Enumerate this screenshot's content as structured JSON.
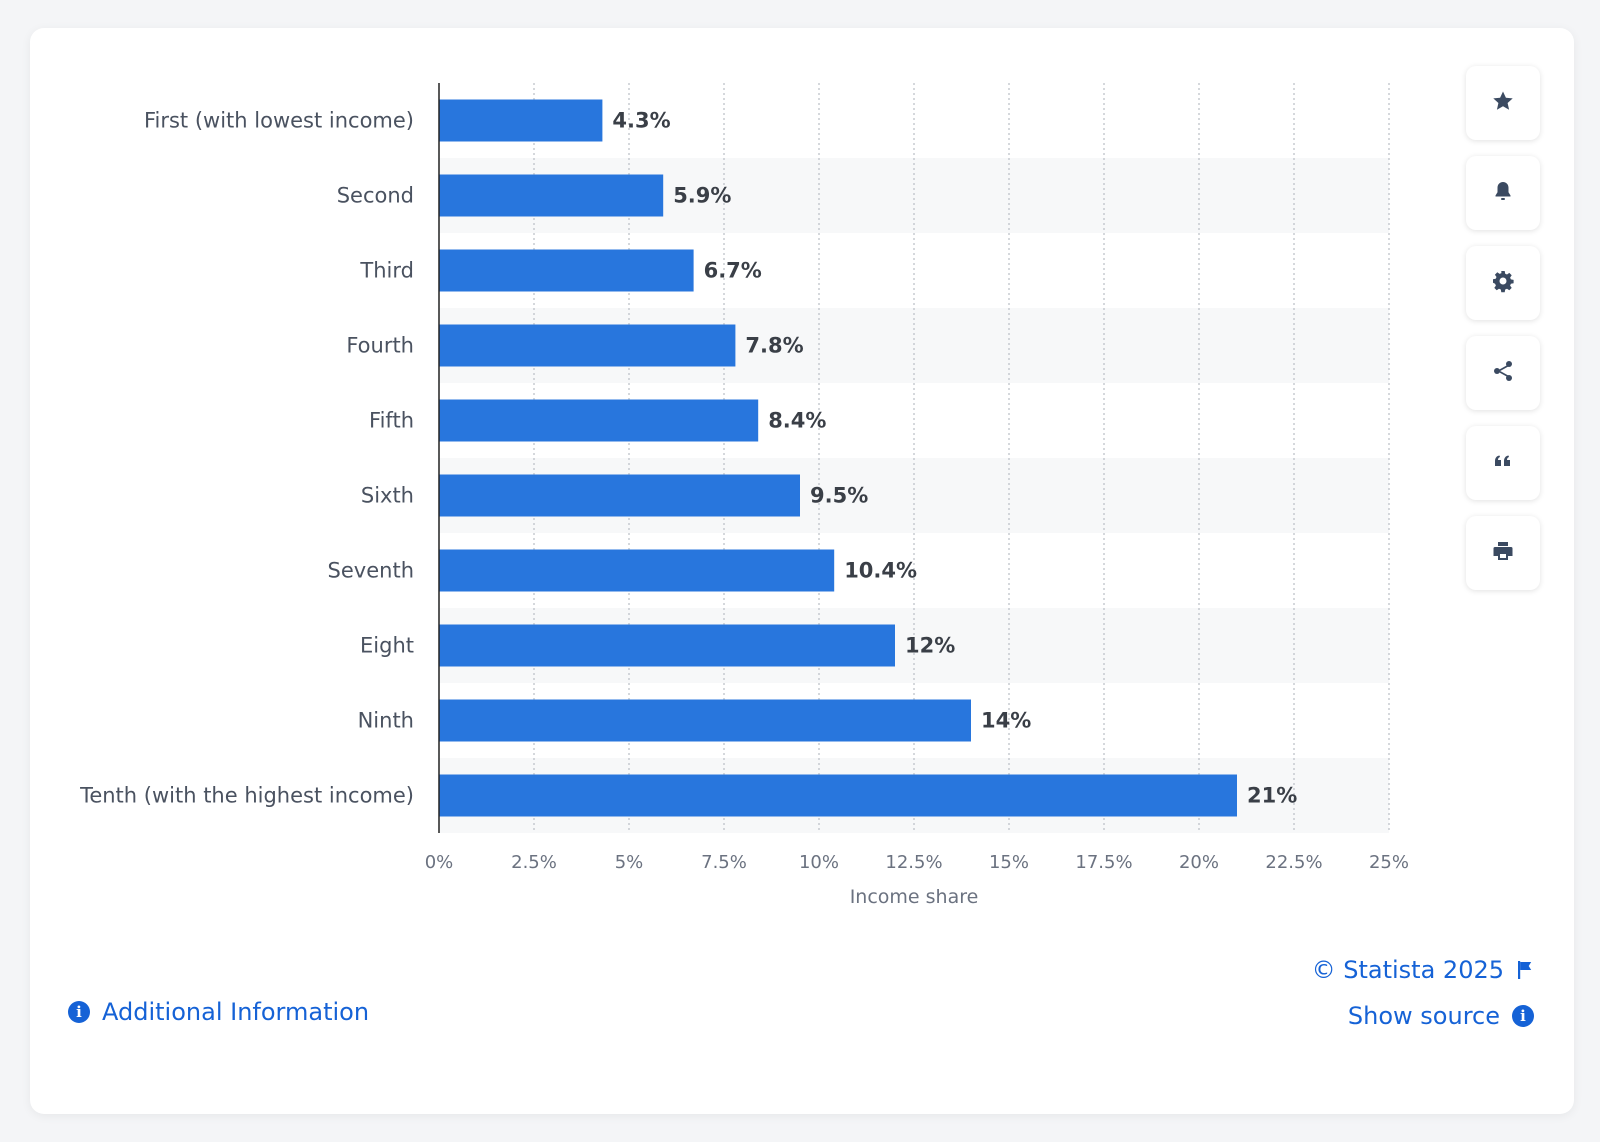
{
  "chart_data": {
    "type": "bar",
    "orientation": "horizontal",
    "categories": [
      "First (with lowest income)",
      "Second",
      "Third",
      "Fourth",
      "Fifth",
      "Sixth",
      "Seventh",
      "Eight",
      "Ninth",
      "Tenth (with the highest income)"
    ],
    "values": [
      4.3,
      5.9,
      6.7,
      7.8,
      8.4,
      9.5,
      10.4,
      12,
      14,
      21
    ],
    "data_labels": [
      "4.3%",
      "5.9%",
      "6.7%",
      "7.8%",
      "8.4%",
      "9.5%",
      "10.4%",
      "12%",
      "14%",
      "21%"
    ],
    "xlabel": "Income share",
    "xlim": [
      0,
      25
    ],
    "xticks": [
      0,
      2.5,
      5,
      7.5,
      10,
      12.5,
      15,
      17.5,
      20,
      22.5,
      25
    ],
    "xtick_labels": [
      "0%",
      "2.5%",
      "5%",
      "7.5%",
      "10%",
      "12.5%",
      "15%",
      "17.5%",
      "20%",
      "22.5%",
      "25%"
    ],
    "grid": "vertical dotted",
    "bar_color": "#2876dd"
  },
  "toolbar": {
    "icons": [
      "star-icon",
      "bell-icon",
      "gear-icon",
      "share-icon",
      "quote-icon",
      "print-icon"
    ]
  },
  "footer": {
    "additional_info": "Additional Information",
    "copyright": "© Statista 2025",
    "show_source": "Show source"
  },
  "colors": {
    "link": "#1562d6",
    "icon": "#3b4a61",
    "bar": "#2876dd"
  }
}
